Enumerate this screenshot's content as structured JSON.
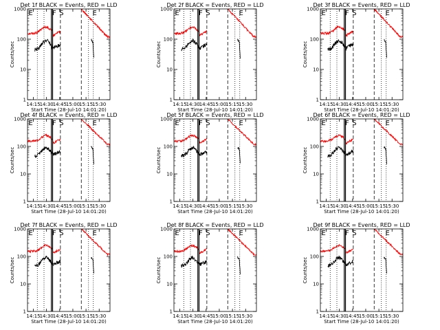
{
  "figure": {
    "x_tick_labels": [
      "14:15",
      "14:30",
      "14:45",
      "15:00",
      "15:15",
      "15:30"
    ],
    "x_tick_minutes": [
      -1.33,
      13.67,
      28.67,
      43.67,
      58.67,
      73.67
    ],
    "y_tick_labels": [
      "1",
      "10",
      "100",
      "1000"
    ],
    "y_tick_values": [
      1,
      10,
      100,
      1000
    ],
    "colors": {
      "events": "#000000",
      "lld": "#ff0000",
      "axes": "#000000"
    }
  },
  "chart_data": [
    {
      "type": "line",
      "title": "Det 1f BLACK = Events, RED = LLD",
      "xlabel": "Start Time (28-Jul-10 14:01:20)",
      "ylabel": "Counts/sec",
      "ylim": [
        1,
        1000
      ],
      "yscale": "log",
      "markers": [
        {
          "label": "E"
        },
        {
          "label": "F"
        },
        {
          "label": "S"
        },
        {
          "label": "E"
        }
      ],
      "series": [
        {
          "name": "BLACK = Events"
        },
        {
          "name": "RED = LLD"
        }
      ]
    },
    {
      "type": "line",
      "title": "Det 2f BLACK = Events, RED = LLD",
      "xlabel": "Start Time (28-Jul-10 14:01:20)",
      "ylabel": "Counts/sec",
      "ylim": [
        1,
        1000
      ],
      "yscale": "log",
      "markers": [
        {
          "label": "E"
        },
        {
          "label": "F"
        },
        {
          "label": "S"
        },
        {
          "label": "E"
        }
      ],
      "series": [
        {
          "name": "BLACK = Events"
        },
        {
          "name": "RED = LLD"
        }
      ]
    },
    {
      "type": "line",
      "title": "Det 3f BLACK = Events, RED = LLD",
      "xlabel": "Start Time (28-Jul-10 14:01:20)",
      "ylabel": "Counts/sec",
      "ylim": [
        1,
        1000
      ],
      "yscale": "log",
      "markers": [
        {
          "label": "E"
        },
        {
          "label": "F"
        },
        {
          "label": "S"
        },
        {
          "label": "E"
        }
      ],
      "series": [
        {
          "name": "BLACK = Events"
        },
        {
          "name": "RED = LLD"
        }
      ]
    },
    {
      "type": "line",
      "title": "Det 4f BLACK = Events, RED = LLD",
      "xlabel": "Start Time (28-Jul-10 14:01:20)",
      "ylabel": "Counts/sec",
      "ylim": [
        1,
        1000
      ],
      "yscale": "log",
      "markers": [
        {
          "label": "E"
        },
        {
          "label": "F"
        },
        {
          "label": "S"
        },
        {
          "label": "E"
        }
      ],
      "series": [
        {
          "name": "BLACK = Events"
        },
        {
          "name": "RED = LLD"
        }
      ]
    },
    {
      "type": "line",
      "title": "Det 5f BLACK = Events, RED = LLD",
      "xlabel": "Start Time (28-Jul-10 14:01:20)",
      "ylabel": "Counts/sec",
      "ylim": [
        1,
        1000
      ],
      "yscale": "log",
      "markers": [
        {
          "label": "E"
        },
        {
          "label": "F"
        },
        {
          "label": "S"
        },
        {
          "label": "E"
        }
      ],
      "series": [
        {
          "name": "BLACK = Events"
        },
        {
          "name": "RED = LLD"
        }
      ]
    },
    {
      "type": "line",
      "title": "Det 6f BLACK = Events, RED = LLD",
      "xlabel": "Start Time (28-Jul-10 14:01:20)",
      "ylabel": "Counts/sec",
      "ylim": [
        1,
        1000
      ],
      "yscale": "log",
      "markers": [
        {
          "label": "E"
        },
        {
          "label": "F"
        },
        {
          "label": "S"
        },
        {
          "label": "E"
        }
      ],
      "series": [
        {
          "name": "BLACK = Events"
        },
        {
          "name": "RED = LLD"
        }
      ]
    },
    {
      "type": "line",
      "title": "Det 7f BLACK = Events, RED = LLD",
      "xlabel": "Start Time (28-Jul-10 14:01:20)",
      "ylabel": "Counts/sec",
      "ylim": [
        1,
        1000
      ],
      "yscale": "log",
      "markers": [
        {
          "label": "E"
        },
        {
          "label": "F"
        },
        {
          "label": "S"
        },
        {
          "label": "E"
        }
      ],
      "series": [
        {
          "name": "BLACK = Events"
        },
        {
          "name": "RED = LLD"
        }
      ]
    },
    {
      "type": "line",
      "title": "Det 8f BLACK = Events, RED = LLD",
      "xlabel": "Start Time (28-Jul-10 14:01:20)",
      "ylabel": "Counts/sec",
      "ylim": [
        1,
        1000
      ],
      "yscale": "log",
      "markers": [
        {
          "label": "E"
        },
        {
          "label": "F"
        },
        {
          "label": "S"
        },
        {
          "label": "E"
        }
      ],
      "series": [
        {
          "name": "BLACK = Events"
        },
        {
          "name": "RED = LLD"
        }
      ]
    },
    {
      "type": "line",
      "title": "Det 9f BLACK = Events, RED = LLD",
      "xlabel": "Start Time (28-Jul-10 14:01:20)",
      "ylabel": "Counts/sec",
      "ylim": [
        1,
        1000
      ],
      "yscale": "log",
      "markers": [
        {
          "label": "E"
        },
        {
          "label": "F"
        },
        {
          "label": "S"
        },
        {
          "label": "E"
        }
      ],
      "series": [
        {
          "name": "BLACK = Events"
        },
        {
          "name": "RED = LLD"
        }
      ]
    }
  ]
}
